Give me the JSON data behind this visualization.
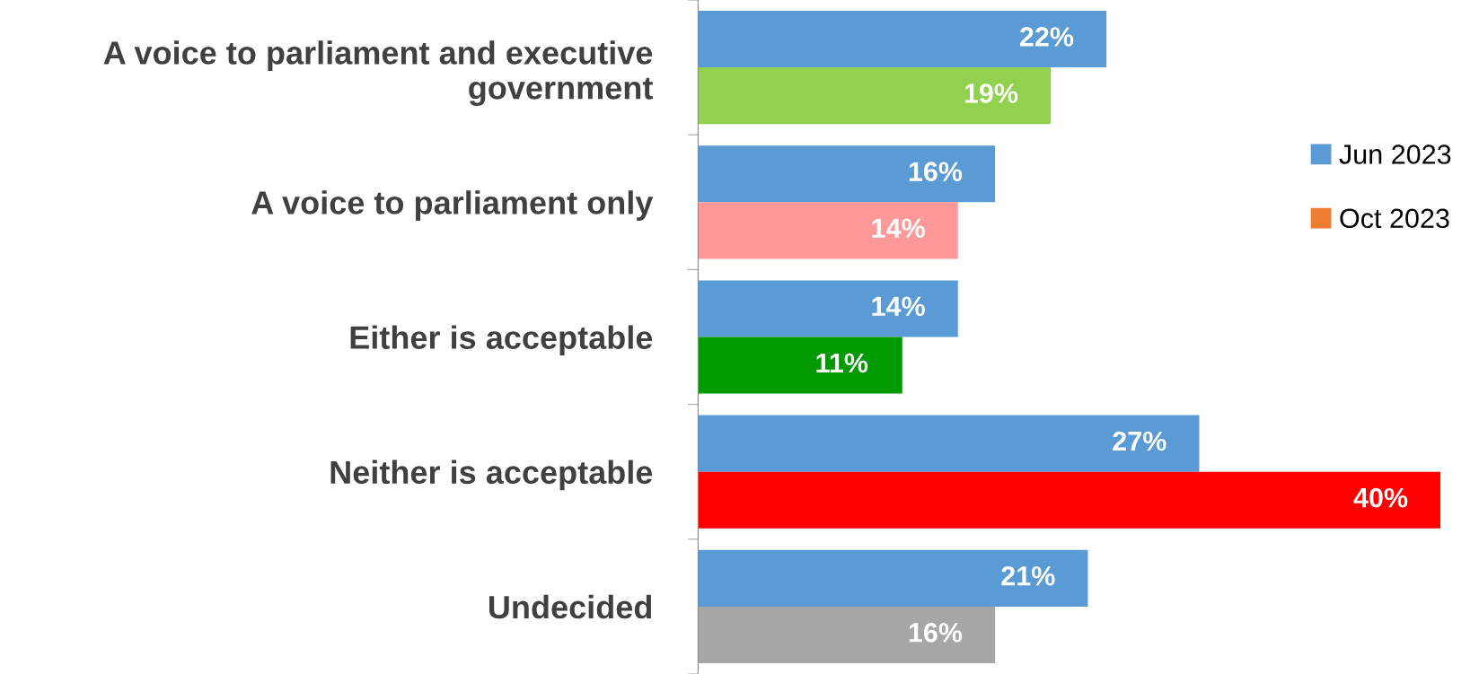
{
  "chart_data": {
    "type": "bar",
    "orientation": "horizontal",
    "categories": [
      "A voice to parliament and executive\ngovernment",
      "A voice to parliament only",
      "Either is acceptable",
      "Neither is acceptable",
      "Undecided"
    ],
    "series": [
      {
        "name": "Jun 2023",
        "color": "#5b9bd5",
        "values": [
          22,
          16,
          14,
          27,
          21
        ],
        "value_labels": [
          "22%",
          "16%",
          "14%",
          "27%",
          "21%"
        ]
      },
      {
        "name": "Oct 2023",
        "color": "#ed7d31",
        "colors": [
          "#92d050",
          "#ff9999",
          "#009900",
          "#ff0000",
          "#a6a6a6"
        ],
        "values": [
          19,
          14,
          11,
          40,
          16
        ],
        "value_labels": [
          "19%",
          "14%",
          "11%",
          "40%",
          "16%"
        ]
      }
    ],
    "legend": "right",
    "grid": false
  }
}
